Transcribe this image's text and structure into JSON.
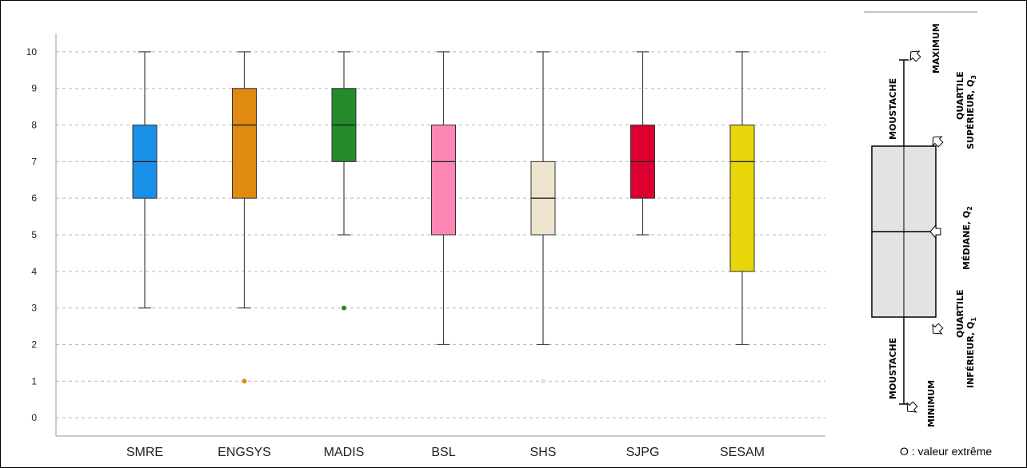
{
  "chart_data": {
    "type": "box",
    "categories": [
      "SMRE",
      "ENGSYS",
      "MADIS",
      "BSL",
      "SHS",
      "SJPG",
      "SESAM"
    ],
    "y_ticks": [
      "0",
      "1",
      "2",
      "3",
      "4",
      "5",
      "6",
      "7",
      "8",
      "9",
      "10"
    ],
    "ylim": [
      -0.5,
      10.5
    ],
    "grid": true,
    "boxes": [
      {
        "category": "SMRE",
        "min": 3,
        "q1": 6,
        "median": 7,
        "q3": 8,
        "max": 10,
        "outliers": [],
        "color": "#1a8fe8"
      },
      {
        "category": "ENGSYS",
        "min": 3,
        "q1": 6,
        "median": 8,
        "q3": 9,
        "max": 10,
        "outliers": [
          1
        ],
        "color": "#e08a10"
      },
      {
        "category": "MADIS",
        "min": 5,
        "q1": 7,
        "median": 8,
        "q3": 9,
        "max": 10,
        "outliers": [
          3
        ],
        "color": "#258a2a"
      },
      {
        "category": "BSL",
        "min": 2,
        "q1": 5,
        "median": 7,
        "q3": 8,
        "max": 10,
        "outliers": [],
        "color": "#fc87b4"
      },
      {
        "category": "SHS",
        "min": 2,
        "q1": 5,
        "median": 6,
        "q3": 7,
        "max": 10,
        "outliers": [
          1
        ],
        "color": "#ede4cd"
      },
      {
        "category": "SJPG",
        "min": 5,
        "q1": 6,
        "median": 7,
        "q3": 8,
        "max": 10,
        "outliers": [],
        "color": "#dc0032"
      },
      {
        "category": "SESAM",
        "min": 2,
        "q1": 4,
        "median": 7,
        "q3": 8,
        "max": 10,
        "outliers": [],
        "color": "#e6d60a"
      }
    ]
  },
  "legend": {
    "whisker_top": "MOUSTACHE",
    "whisker_bottom": "MOUSTACHE",
    "maximum": "MAXIMUM",
    "q3_line1": "QUARTILE",
    "q3_line2": "SUPÉRIEUR, Q",
    "q3_sub": "3",
    "median": "MÉDIANE, Q",
    "median_sub": "2",
    "q1_line1": "QUARTILE",
    "q1_line2": "INFÉRIEUR, Q",
    "q1_sub": "1",
    "minimum": "MINIMUM",
    "outlier_note": "O : valeur extrême"
  },
  "colors": {
    "grid": "#bbbbbb",
    "axis": "#999999",
    "legend_box_fill": "#e3e3e3"
  }
}
